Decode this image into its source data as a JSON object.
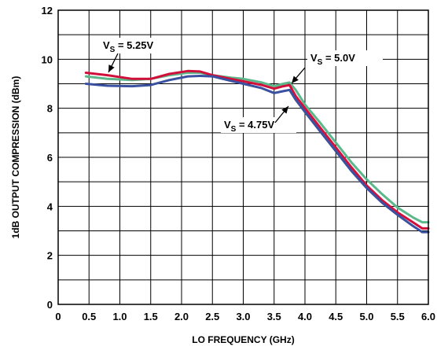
{
  "chart_data": {
    "type": "line",
    "xlabel": "LO FREQUENCY (GHz)",
    "ylabel": "1dB OUTPUT COMPRESSION (dBm)",
    "xlim": [
      0,
      6.0
    ],
    "ylim": [
      0,
      12
    ],
    "xticks": [
      "0",
      "0.5",
      "1.0",
      "1.5",
      "2.0",
      "2.5",
      "3.0",
      "3.5",
      "4.0",
      "4.5",
      "5.0",
      "5.5",
      "6.0"
    ],
    "xtick_values": [
      0,
      0.5,
      1.0,
      1.5,
      2.0,
      2.5,
      3.0,
      3.5,
      4.0,
      4.5,
      5.0,
      5.5,
      6.0
    ],
    "yticks": [
      "0",
      "2",
      "4",
      "6",
      "8",
      "10",
      "12"
    ],
    "ytick_values": [
      0,
      2,
      4,
      6,
      8,
      10,
      12
    ],
    "grid": true,
    "series": [
      {
        "color": "#5cb88a",
        "x": [
          0.45,
          0.8,
          1.2,
          1.5,
          1.8,
          2.1,
          2.3,
          2.5,
          2.8,
          3.0,
          3.3,
          3.5,
          3.65,
          3.75,
          3.85,
          4.0,
          4.25,
          4.5,
          4.75,
          5.0,
          5.25,
          5.5,
          5.75,
          5.9,
          6.0
        ],
        "y": [
          9.3,
          9.2,
          9.15,
          9.2,
          9.35,
          9.45,
          9.45,
          9.35,
          9.25,
          9.2,
          9.05,
          8.9,
          9.0,
          9.05,
          8.75,
          8.15,
          7.4,
          6.6,
          5.8,
          5.1,
          4.5,
          3.95,
          3.55,
          3.35,
          3.35
        ]
      },
      {
        "color": "#d0103a",
        "x": [
          0.45,
          0.8,
          1.2,
          1.5,
          1.8,
          2.1,
          2.3,
          2.5,
          2.8,
          3.0,
          3.3,
          3.5,
          3.65,
          3.75,
          3.85,
          4.0,
          4.25,
          4.5,
          4.75,
          5.0,
          5.25,
          5.5,
          5.75,
          5.9,
          6.0
        ],
        "y": [
          9.45,
          9.35,
          9.2,
          9.2,
          9.4,
          9.52,
          9.5,
          9.35,
          9.2,
          9.1,
          8.95,
          8.8,
          8.9,
          8.95,
          8.5,
          8.0,
          7.2,
          6.4,
          5.6,
          4.85,
          4.25,
          3.75,
          3.35,
          3.1,
          3.1
        ]
      },
      {
        "color": "#3a50a0",
        "x": [
          0.45,
          0.8,
          1.2,
          1.5,
          1.8,
          2.1,
          2.3,
          2.5,
          2.8,
          3.0,
          3.3,
          3.5,
          3.65,
          3.75,
          3.85,
          4.0,
          4.25,
          4.5,
          4.75,
          5.0,
          5.25,
          5.5,
          5.75,
          5.9,
          6.0
        ],
        "y": [
          9.0,
          8.92,
          8.9,
          8.95,
          9.15,
          9.3,
          9.32,
          9.3,
          9.12,
          9.0,
          8.82,
          8.62,
          8.7,
          8.75,
          8.35,
          7.85,
          7.05,
          6.25,
          5.45,
          4.75,
          4.15,
          3.65,
          3.2,
          2.95,
          2.95
        ]
      }
    ],
    "annotations": [
      {
        "prefix": "V",
        "sub": "S",
        "suffix": " = 5.25V"
      },
      {
        "prefix": "V",
        "sub": "S",
        "suffix": " = 5.0V"
      },
      {
        "prefix": "V",
        "sub": "S",
        "suffix": " = 4.75V"
      }
    ]
  }
}
